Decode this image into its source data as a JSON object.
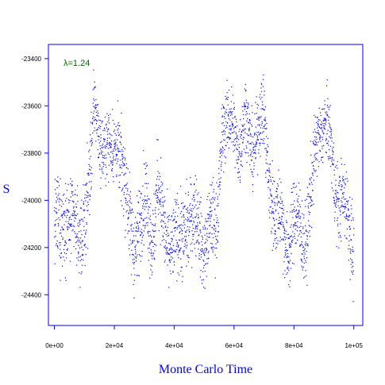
{
  "chart_data": {
    "type": "scatter",
    "xlabel": "Monte Carlo Time",
    "ylabel": "S",
    "annotation": "λ=1.24",
    "xlim": [
      -2000,
      103000
    ],
    "ylim": [
      -24530,
      -23340
    ],
    "x_ticks": [
      {
        "value": 0,
        "label": "0e+00"
      },
      {
        "value": 20000,
        "label": "2e+04"
      },
      {
        "value": 40000,
        "label": "4e+04"
      },
      {
        "value": 60000,
        "label": "6e+04"
      },
      {
        "value": 80000,
        "label": "8e+04"
      },
      {
        "value": 100000,
        "label": "1e+05"
      }
    ],
    "y_ticks": [
      {
        "value": -23400,
        "label": "-23400"
      },
      {
        "value": -23600,
        "label": "-23600"
      },
      {
        "value": -23800,
        "label": "-23800"
      },
      {
        "value": -24000,
        "label": "-24000"
      },
      {
        "value": -24200,
        "label": "-24200"
      },
      {
        "value": -24400,
        "label": "-24400"
      }
    ],
    "series": [
      {
        "color": "#0000ff",
        "x": [
          0,
          2000,
          4000,
          6000,
          8000,
          10000,
          12000,
          13500,
          15000,
          17000,
          19000,
          21000,
          23000,
          25000,
          27000,
          29000,
          31000,
          33000,
          34500,
          36000,
          38000,
          40000,
          42000,
          44000,
          46000,
          48000,
          50000,
          52000,
          54000,
          56000,
          58000,
          60000,
          62000,
          64000,
          66000,
          68000,
          70000,
          72000,
          74000,
          76000,
          78000,
          80000,
          82000,
          84000,
          86000,
          88000,
          90000,
          92000,
          94000,
          96000,
          98000,
          100000
        ],
        "values": [
          -24100,
          -24150,
          -24020,
          -24100,
          -24200,
          -24050,
          -23900,
          -23620,
          -23700,
          -23780,
          -23820,
          -23700,
          -23900,
          -24100,
          -24150,
          -24100,
          -24000,
          -24150,
          -23950,
          -24100,
          -24150,
          -24200,
          -24180,
          -24060,
          -24120,
          -24080,
          -24180,
          -24150,
          -24100,
          -23700,
          -23720,
          -23650,
          -23780,
          -23680,
          -23750,
          -23700,
          -23680,
          -23900,
          -24100,
          -24080,
          -24180,
          -24120,
          -24100,
          -24150,
          -23980,
          -23700,
          -23650,
          -23780,
          -23950,
          -23980,
          -24100,
          -24200
        ],
        "spread": [
          140,
          160,
          150,
          140,
          130,
          150,
          160,
          120,
          110,
          110,
          120,
          120,
          150,
          150,
          160,
          140,
          160,
          150,
          150,
          140,
          150,
          130,
          140,
          150,
          140,
          140,
          130,
          140,
          140,
          130,
          120,
          120,
          130,
          120,
          120,
          120,
          130,
          150,
          150,
          140,
          140,
          140,
          140,
          140,
          140,
          120,
          120,
          120,
          140,
          130,
          140,
          150
        ]
      }
    ]
  }
}
